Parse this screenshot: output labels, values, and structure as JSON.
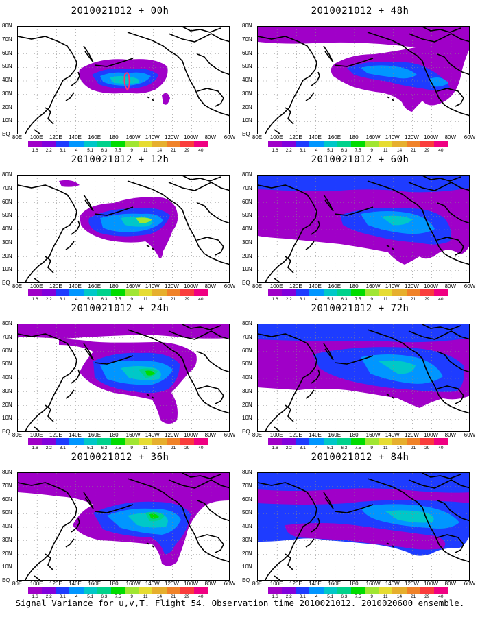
{
  "panels": [
    {
      "title": "2010021012 + 00h"
    },
    {
      "title": "2010021012 + 48h"
    },
    {
      "title": "2010021012 + 12h"
    },
    {
      "title": "2010021012 + 60h"
    },
    {
      "title": "2010021012 + 24h"
    },
    {
      "title": "2010021012 + 72h"
    },
    {
      "title": "2010021012 + 36h"
    },
    {
      "title": "2010021012 + 84h"
    }
  ],
  "y_axis_labels": [
    "80N",
    "70N",
    "60N",
    "50N",
    "40N",
    "30N",
    "20N",
    "10N",
    "EQ"
  ],
  "x_axis_labels": [
    "80E",
    "100E",
    "120E",
    "140E",
    "160E",
    "180",
    "160W",
    "140W",
    "120W",
    "100W",
    "80W",
    "60W"
  ],
  "colorbar": {
    "labels": [
      "1.6",
      "2.2",
      "3.1",
      "4",
      "5.1",
      "6.3",
      "7.5",
      "9",
      "11",
      "14",
      "21",
      "29",
      "40"
    ],
    "colors": [
      "#a000c8",
      "#8200dc",
      "#1e3cff",
      "#0096ff",
      "#00c8c8",
      "#00d28c",
      "#00dc00",
      "#a0e632",
      "#e6dc32",
      "#e6af2d",
      "#f08228",
      "#fa3c3c",
      "#f00082"
    ]
  },
  "caption": "Signal Variance for u,v,T. Flight 54. Observation time 2010021012. 2010020600 ensemble."
}
